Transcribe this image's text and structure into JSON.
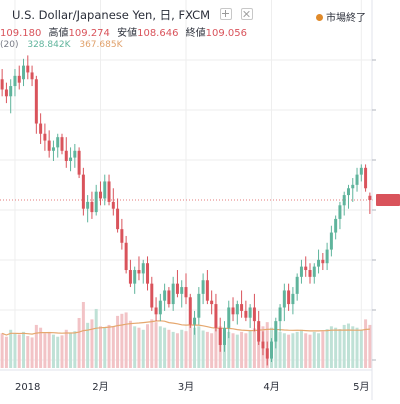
{
  "header": {
    "symbol_text": "U.S. Dollar/Japanese Yen, 日, FXCM",
    "ohlc": [
      {
        "label": "",
        "value": "109.180"
      },
      {
        "label": "高値",
        "value": "109.274"
      },
      {
        "label": "安値",
        "value": "108.646"
      },
      {
        "label": "終値",
        "value": "109.056"
      }
    ],
    "volume_label": "(20)",
    "volume_value": "328.842K",
    "volume_ma_value": "367.685K",
    "status_text": "市場終了"
  },
  "colors": {
    "up": "#5fb49c",
    "down": "#d9535b",
    "up_volume": "#bfe1d6",
    "down_volume": "#f2c3c6",
    "volume_ma": "#e5a76e",
    "price_line": "#e37b7b",
    "grid": "#eeeeee",
    "axis_text": "#2a2e39"
  },
  "chart_data": {
    "type": "candlestick",
    "symbol": "USDJPY",
    "interval": "1D",
    "x_tick_labels": [
      "2018",
      "2月",
      "3月",
      "4月",
      "5月"
    ],
    "x_tick_index": [
      3,
      23,
      43,
      63,
      84
    ],
    "price_range": [
      104.3,
      113.4
    ],
    "current_price": 109.056,
    "volume_ma_period": 20,
    "candles": [
      [
        112.6,
        112.9,
        112.1,
        112.3
      ],
      [
        112.3,
        112.5,
        111.9,
        112.1
      ],
      [
        112.1,
        112.6,
        111.6,
        112.4
      ],
      [
        112.4,
        112.9,
        112.1,
        112.7
      ],
      [
        112.7,
        113.0,
        112.3,
        112.5
      ],
      [
        112.6,
        113.2,
        112.4,
        113.0
      ],
      [
        113.0,
        113.3,
        112.6,
        112.8
      ],
      [
        112.8,
        113.0,
        112.4,
        112.6
      ],
      [
        112.6,
        112.7,
        111.0,
        111.3
      ],
      [
        111.3,
        111.6,
        110.7,
        111.0
      ],
      [
        111.0,
        111.3,
        110.5,
        110.8
      ],
      [
        110.8,
        111.1,
        110.3,
        110.5
      ],
      [
        110.5,
        110.8,
        110.2,
        110.6
      ],
      [
        110.6,
        111.0,
        110.3,
        110.9
      ],
      [
        110.9,
        111.0,
        110.4,
        110.5
      ],
      [
        110.5,
        110.9,
        110.0,
        110.2
      ],
      [
        110.2,
        110.6,
        109.9,
        110.3
      ],
      [
        110.3,
        110.7,
        110.0,
        110.5
      ],
      [
        110.5,
        110.6,
        109.7,
        109.8
      ],
      [
        109.8,
        110.0,
        108.6,
        108.8
      ],
      [
        108.8,
        109.2,
        108.4,
        109.0
      ],
      [
        109.0,
        109.3,
        108.5,
        108.7
      ],
      [
        108.7,
        109.5,
        108.6,
        109.3
      ],
      [
        109.3,
        109.6,
        108.9,
        109.1
      ],
      [
        109.1,
        109.8,
        108.9,
        109.6
      ],
      [
        109.6,
        109.8,
        108.9,
        109.0
      ],
      [
        109.0,
        109.4,
        108.6,
        108.8
      ],
      [
        108.8,
        109.1,
        108.1,
        108.2
      ],
      [
        108.2,
        108.5,
        107.6,
        107.8
      ],
      [
        107.8,
        108.0,
        106.9,
        107.0
      ],
      [
        107.0,
        107.3,
        106.5,
        106.6
      ],
      [
        106.6,
        107.1,
        106.3,
        107.0
      ],
      [
        107.0,
        107.4,
        106.7,
        106.9
      ],
      [
        106.9,
        107.3,
        106.6,
        107.2
      ],
      [
        107.2,
        107.4,
        106.4,
        106.6
      ],
      [
        106.6,
        106.8,
        105.8,
        105.9
      ],
      [
        105.9,
        106.2,
        105.5,
        105.7
      ],
      [
        105.7,
        106.3,
        105.5,
        106.1
      ],
      [
        106.1,
        106.6,
        105.8,
        106.4
      ],
      [
        106.4,
        106.5,
        105.9,
        106.0
      ],
      [
        106.0,
        106.8,
        105.8,
        106.6
      ],
      [
        106.6,
        107.0,
        106.2,
        106.3
      ],
      [
        106.3,
        106.7,
        105.9,
        106.5
      ],
      [
        106.5,
        106.9,
        106.0,
        106.2
      ],
      [
        106.2,
        106.3,
        105.3,
        105.4
      ],
      [
        105.4,
        105.8,
        105.1,
        105.6
      ],
      [
        105.6,
        106.5,
        105.4,
        106.3
      ],
      [
        106.3,
        106.9,
        106.0,
        106.7
      ],
      [
        106.7,
        107.0,
        106.0,
        106.1
      ],
      [
        106.1,
        106.4,
        105.7,
        106.0
      ],
      [
        106.0,
        106.3,
        105.2,
        105.3
      ],
      [
        105.3,
        105.6,
        104.6,
        104.8
      ],
      [
        104.8,
        105.5,
        104.6,
        105.3
      ],
      [
        105.3,
        106.1,
        105.0,
        105.9
      ],
      [
        105.9,
        106.2,
        105.5,
        105.7
      ],
      [
        105.7,
        106.1,
        105.4,
        106.0
      ],
      [
        106.0,
        106.4,
        105.6,
        105.8
      ],
      [
        105.8,
        106.1,
        105.5,
        105.6
      ],
      [
        105.6,
        106.0,
        105.3,
        105.9
      ],
      [
        105.9,
        106.3,
        105.2,
        105.5
      ],
      [
        105.5,
        105.8,
        104.8,
        104.9
      ],
      [
        104.9,
        105.2,
        104.5,
        104.7
      ],
      [
        104.7,
        104.9,
        104.2,
        104.4
      ],
      [
        104.4,
        105.0,
        104.3,
        104.9
      ],
      [
        104.9,
        105.6,
        104.7,
        105.5
      ],
      [
        105.5,
        106.0,
        105.2,
        105.9
      ],
      [
        105.9,
        106.6,
        105.5,
        106.4
      ],
      [
        106.4,
        106.6,
        105.8,
        106.0
      ],
      [
        106.0,
        106.5,
        105.7,
        106.3
      ],
      [
        106.3,
        106.9,
        106.1,
        106.8
      ],
      [
        106.8,
        107.3,
        106.6,
        107.1
      ],
      [
        107.1,
        107.4,
        106.8,
        107.0
      ],
      [
        107.0,
        107.2,
        106.6,
        106.8
      ],
      [
        106.8,
        107.2,
        106.6,
        107.1
      ],
      [
        107.1,
        107.6,
        106.9,
        107.3
      ],
      [
        107.3,
        107.5,
        107.0,
        107.2
      ],
      [
        107.2,
        107.8,
        107.0,
        107.6
      ],
      [
        107.6,
        108.3,
        107.4,
        108.1
      ],
      [
        108.1,
        108.6,
        107.9,
        108.5
      ],
      [
        108.5,
        109.0,
        108.2,
        108.9
      ],
      [
        108.9,
        109.3,
        108.6,
        109.2
      ],
      [
        109.2,
        109.5,
        108.8,
        109.4
      ],
      [
        109.4,
        109.7,
        109.0,
        109.5
      ],
      [
        109.5,
        110.0,
        109.3,
        109.8
      ],
      [
        109.8,
        110.1,
        109.6,
        110.0
      ],
      [
        110.0,
        110.1,
        109.3,
        109.4
      ],
      [
        109.18,
        109.274,
        108.646,
        109.056
      ]
    ],
    "volumes": [
      0.5,
      0.45,
      0.55,
      0.5,
      0.48,
      0.52,
      0.46,
      0.44,
      0.62,
      0.58,
      0.5,
      0.52,
      0.48,
      0.45,
      0.47,
      0.55,
      0.5,
      0.53,
      0.72,
      0.95,
      0.65,
      0.7,
      0.85,
      0.6,
      0.58,
      0.62,
      0.6,
      0.75,
      0.78,
      0.8,
      0.68,
      0.6,
      0.58,
      0.55,
      0.63,
      0.7,
      0.66,
      0.6,
      0.58,
      0.55,
      0.52,
      0.5,
      0.55,
      0.53,
      0.62,
      0.58,
      0.6,
      0.54,
      0.52,
      0.5,
      0.56,
      0.6,
      0.55,
      0.52,
      0.5,
      0.48,
      0.52,
      0.5,
      0.54,
      0.57,
      0.62,
      0.6,
      0.66,
      0.58,
      0.55,
      0.52,
      0.5,
      0.48,
      0.5,
      0.52,
      0.55,
      0.5,
      0.48,
      0.52,
      0.5,
      0.53,
      0.56,
      0.6,
      0.58,
      0.56,
      0.62,
      0.64,
      0.6,
      0.58,
      0.55,
      0.7,
      0.62
    ]
  }
}
